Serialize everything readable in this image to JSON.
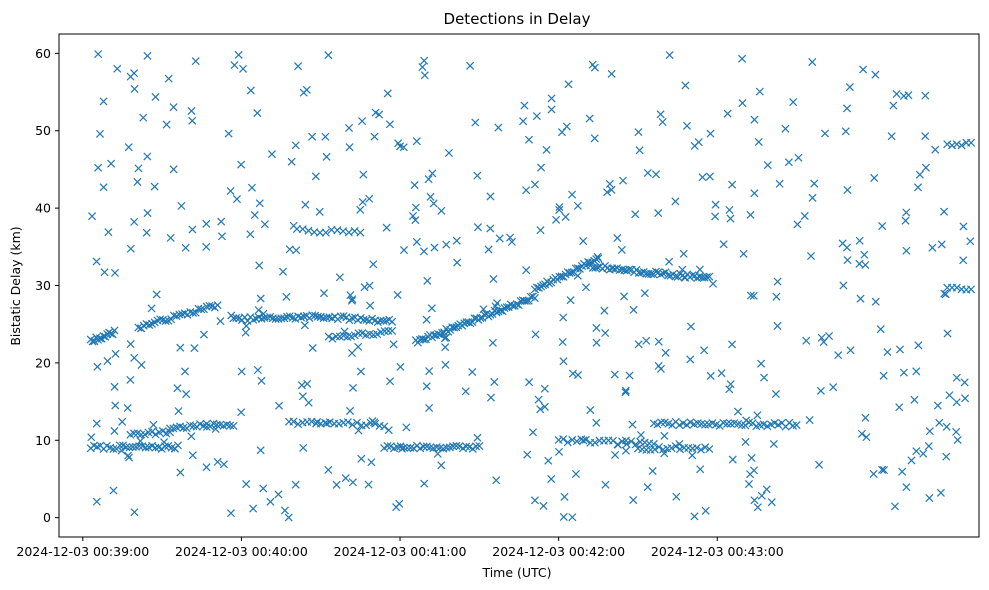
{
  "chart_data": {
    "type": "scatter",
    "title": "Detections in Delay",
    "xlabel": "Time (UTC)",
    "ylabel": "Bistatic Delay (km)",
    "marker": "x",
    "color": "#1f77b4",
    "xlim_minutes": [
      38.85,
      44.65
    ],
    "ylim": [
      -2.5,
      62.5
    ],
    "x_ticks": [
      {
        "value": 39,
        "label": "2024-12-03 00:39:00"
      },
      {
        "value": 40,
        "label": "2024-12-03 00:40:00"
      },
      {
        "value": 41,
        "label": "2024-12-03 00:41:00"
      },
      {
        "value": 42,
        "label": "2024-12-03 00:42:00"
      },
      {
        "value": 43,
        "label": "2024-12-03 00:43:00"
      }
    ],
    "y_ticks": [
      {
        "value": 0,
        "label": "0"
      },
      {
        "value": 10,
        "label": "10"
      },
      {
        "value": 20,
        "label": "20"
      },
      {
        "value": 30,
        "label": "30"
      },
      {
        "value": 40,
        "label": "40"
      },
      {
        "value": 50,
        "label": "50"
      },
      {
        "value": 60,
        "label": "60"
      }
    ],
    "x_range_data": [
      39.05,
      44.6
    ],
    "tracks": [
      {
        "name": "track-low-1",
        "x_start": 39.05,
        "x_end": 39.6,
        "y_start": 9.1,
        "y_end": 9.1,
        "count": 28
      },
      {
        "name": "track-low-2",
        "x_start": 39.3,
        "x_end": 39.55,
        "y_start": 10.9,
        "y_end": 11.0,
        "count": 12
      },
      {
        "name": "track-low-3",
        "x_start": 39.55,
        "x_end": 39.95,
        "y_start": 11.6,
        "y_end": 12.1,
        "count": 20
      },
      {
        "name": "track-low-4",
        "x_start": 40.3,
        "x_end": 40.9,
        "y_start": 12.3,
        "y_end": 12.0,
        "count": 22
      },
      {
        "name": "track-low-5",
        "x_start": 40.9,
        "x_end": 41.5,
        "y_start": 9.1,
        "y_end": 9.1,
        "count": 30
      },
      {
        "name": "track-low-6",
        "x_start": 42.0,
        "x_end": 42.6,
        "y_start": 10.0,
        "y_end": 9.5,
        "count": 22
      },
      {
        "name": "track-low-7",
        "x_start": 42.5,
        "x_end": 42.95,
        "y_start": 9.0,
        "y_end": 9.0,
        "count": 18
      },
      {
        "name": "track-low-8",
        "x_start": 42.6,
        "x_end": 43.5,
        "y_start": 12.2,
        "y_end": 12.0,
        "count": 40
      },
      {
        "name": "track-mid-1",
        "x_start": 39.05,
        "x_end": 39.2,
        "y_start": 22.8,
        "y_end": 24.0,
        "count": 14
      },
      {
        "name": "track-mid-2",
        "x_start": 39.35,
        "x_end": 39.85,
        "y_start": 24.6,
        "y_end": 27.5,
        "count": 30
      },
      {
        "name": "track-mid-3",
        "x_start": 39.95,
        "x_end": 40.5,
        "y_start": 25.6,
        "y_end": 26.0,
        "count": 32
      },
      {
        "name": "track-mid-4",
        "x_start": 40.5,
        "x_end": 40.95,
        "y_start": 26.0,
        "y_end": 25.4,
        "count": 26
      },
      {
        "name": "track-mid-5",
        "x_start": 40.55,
        "x_end": 40.95,
        "y_start": 23.3,
        "y_end": 24.0,
        "count": 18
      },
      {
        "name": "track-mid-6",
        "x_start": 41.1,
        "x_end": 41.85,
        "y_start": 22.7,
        "y_end": 28.5,
        "count": 60
      },
      {
        "name": "track-mid-7",
        "x_start": 41.85,
        "x_end": 42.25,
        "y_start": 29.5,
        "y_end": 33.5,
        "count": 32
      },
      {
        "name": "track-mid-8",
        "x_start": 42.2,
        "x_end": 42.95,
        "y_start": 32.5,
        "y_end": 30.9,
        "count": 50
      },
      {
        "name": "track-mid-9",
        "x_start": 40.35,
        "x_end": 40.75,
        "y_start": 37.2,
        "y_end": 36.8,
        "count": 12
      },
      {
        "name": "track-high-1",
        "x_start": 44.45,
        "x_end": 44.6,
        "y_start": 48.3,
        "y_end": 48.3,
        "count": 6
      },
      {
        "name": "track-high-2",
        "x_start": 44.45,
        "x_end": 44.6,
        "y_start": 29.5,
        "y_end": 29.5,
        "count": 6
      }
    ],
    "noise": {
      "count": 520,
      "x_range": [
        39.05,
        44.6
      ],
      "y_range": [
        0,
        60
      ],
      "seed": 7
    }
  }
}
